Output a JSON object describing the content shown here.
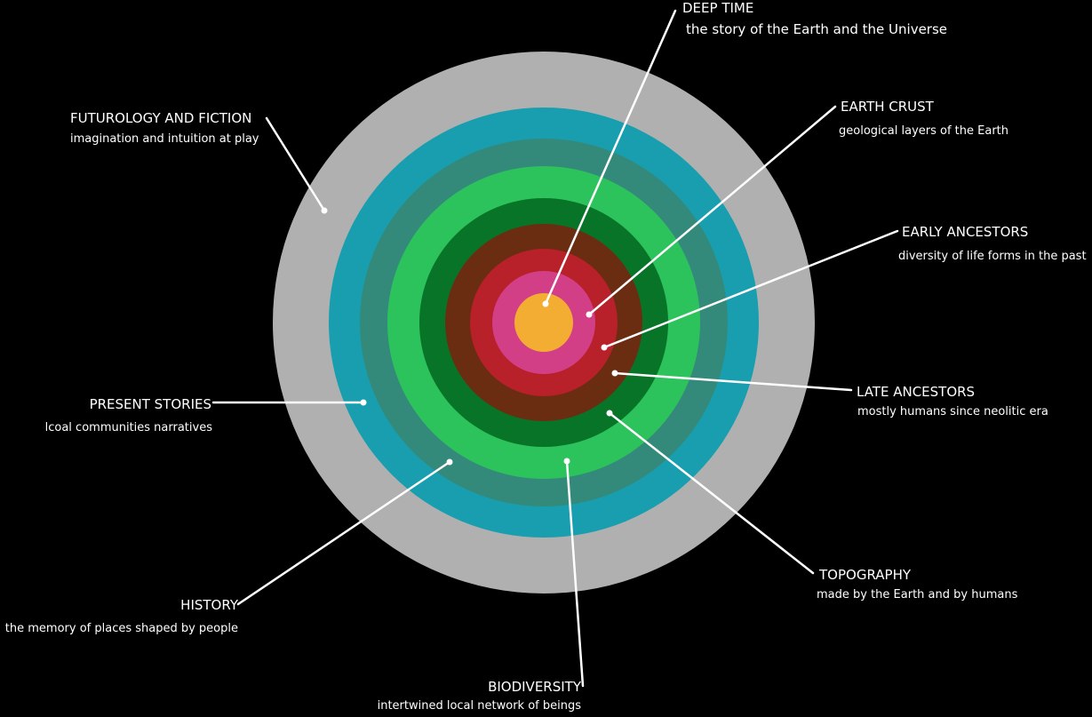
{
  "rings": [
    {
      "id": "futurology",
      "color": "#b0b0b0"
    },
    {
      "id": "present-stories",
      "color": "#189eaf"
    },
    {
      "id": "history",
      "color": "#348a7a"
    },
    {
      "id": "biodiversity",
      "color": "#2dc35c"
    },
    {
      "id": "topography",
      "color": "#087428"
    },
    {
      "id": "late-ancestors",
      "color": "#6a2d12"
    },
    {
      "id": "early-ancestors",
      "color": "#b8202a"
    },
    {
      "id": "earth-crust",
      "color": "#d23f87"
    },
    {
      "id": "deep-time",
      "color": "#f4ad33"
    }
  ],
  "layers": {
    "deep_time": {
      "title": "DEEP TIME",
      "subtitle": "the story of the Earth and the Universe"
    },
    "earth_crust": {
      "title": "EARTH CRUST",
      "subtitle": "geological layers of the Earth"
    },
    "early_ancestors": {
      "title": "EARLY ANCESTORS",
      "subtitle": "diversity of life forms in the past"
    },
    "late_ancestors": {
      "title": "LATE ANCESTORS",
      "subtitle": "mostly humans since neolitic era"
    },
    "topography": {
      "title": "TOPOGRAPHY",
      "subtitle": "made by the Earth and by humans"
    },
    "biodiversity": {
      "title": "BIODIVERSITY",
      "subtitle": "intertwined local network of beings"
    },
    "history": {
      "title": "HISTORY",
      "subtitle": "the memory of places shaped by people"
    },
    "present_stories": {
      "title": "PRESENT STORIES",
      "subtitle": "lcoal communities narratives"
    },
    "futurology": {
      "title": "FUTUROLOGY AND FICTION",
      "subtitle": "imagination and intuition at play"
    }
  }
}
